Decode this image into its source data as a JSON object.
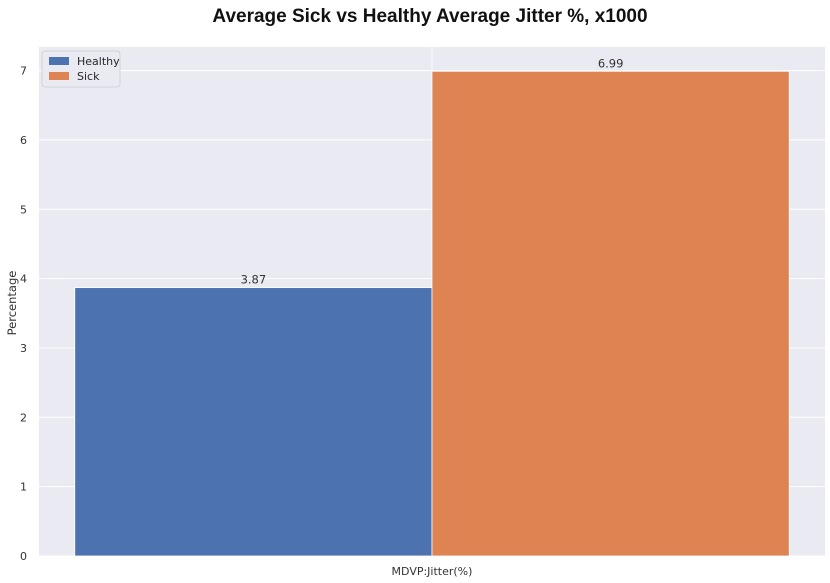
{
  "chart_data": {
    "type": "bar",
    "title": "Average Sick vs Healthy Average Jitter %, x1000",
    "xlabel": "",
    "ylabel": "Percentage",
    "categories": [
      "MDVP:Jitter(%)"
    ],
    "series": [
      {
        "name": "Healthy",
        "values": [
          3.87
        ],
        "color": "#4c72b0",
        "label": "3.87"
      },
      {
        "name": "Sick",
        "values": [
          6.99
        ],
        "color": "#dd8452",
        "label": "6.99"
      }
    ],
    "ylim": [
      0,
      7.34
    ],
    "yticks": [
      0,
      1,
      2,
      3,
      4,
      5,
      6,
      7
    ],
    "grid": true,
    "legend_position": "top-left",
    "background_color": "#eaeaf2",
    "grid_color": "#ffffff"
  }
}
